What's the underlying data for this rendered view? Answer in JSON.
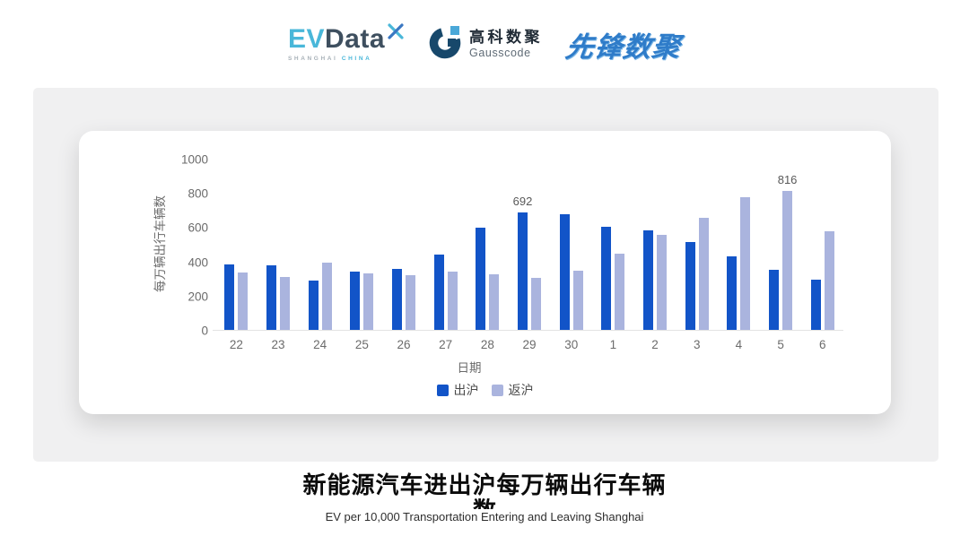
{
  "header": {
    "evdata": {
      "ev": "EV",
      "data": "Data",
      "sub_left": "SHANGHAI",
      "sub_right": "CHINA"
    },
    "gausscode": {
      "cn": "高科数聚",
      "en": "Gausscode"
    },
    "pioneer": {
      "text": "先锋数聚"
    }
  },
  "chart_data": {
    "type": "bar",
    "title": "",
    "xlabel": "日期",
    "ylabel": "每万辆出行车辆数",
    "categories": [
      "22",
      "23",
      "24",
      "25",
      "26",
      "27",
      "28",
      "29",
      "30",
      "1",
      "2",
      "3",
      "4",
      "5",
      "6"
    ],
    "series": [
      {
        "name": "出沪",
        "color": "#1254c8",
        "values": [
          390,
          380,
          292,
          345,
          360,
          447,
          604,
          692,
          680,
          610,
          585,
          516,
          437,
          358,
          297
        ]
      },
      {
        "name": "返沪",
        "color": "#aab4de",
        "values": [
          340,
          317,
          398,
          336,
          327,
          346,
          330,
          310,
          353,
          451,
          563,
          661,
          781,
          816,
          580
        ]
      }
    ],
    "yticks": [
      0,
      200,
      400,
      600,
      800,
      1000
    ],
    "ylim": [
      0,
      1000
    ],
    "grid": false,
    "legend_position": "bottom",
    "point_labels": [
      {
        "series": 0,
        "index": 7,
        "text": "692"
      },
      {
        "series": 1,
        "index": 13,
        "text": "816"
      }
    ]
  },
  "footer": {
    "title_line1": "新能源汽车进出沪每万辆出行车辆",
    "title_line2": "数",
    "subtitle": "EV per 10,000 Transportation Entering and Leaving Shanghai"
  },
  "colors": {
    "bar_primary": "#1254c8",
    "bar_secondary": "#aab4de",
    "panel": "#f0f0f1",
    "axis_text": "#6b6b6b"
  }
}
